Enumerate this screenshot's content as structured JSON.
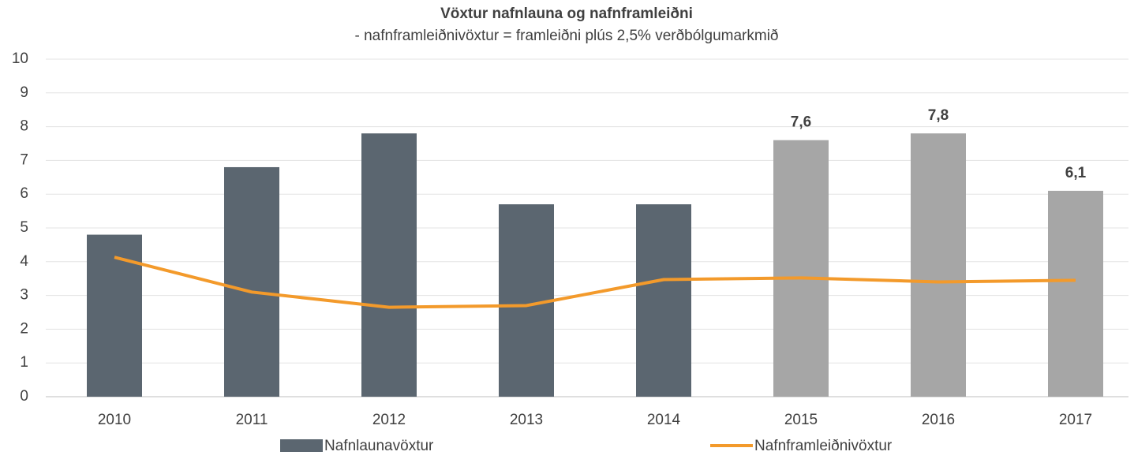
{
  "chart_data": {
    "type": "bar",
    "title": "Vöxtur nafnlauna og nafnframleiðni",
    "subtitle": "- nafnframleiðnivöxtur = framleiðni plús 2,5% verðbólgumarkmið",
    "categories": [
      "2010",
      "2011",
      "2012",
      "2013",
      "2014",
      "2015",
      "2016",
      "2017"
    ],
    "series": [
      {
        "name": "Nafnlaunavöxtur",
        "type": "bar",
        "color": "#5b6670",
        "colors": [
          "#5b6670",
          "#5b6670",
          "#5b6670",
          "#5b6670",
          "#5b6670",
          "#a6a6a6",
          "#a6a6a6",
          "#a6a6a6"
        ],
        "values": [
          4.8,
          6.8,
          7.8,
          5.7,
          5.7,
          7.6,
          7.8,
          6.1
        ],
        "value_labels": [
          null,
          null,
          null,
          null,
          null,
          "7,6",
          "7,8",
          "6,1"
        ]
      },
      {
        "name": "Nafnframleiðnivöxtur",
        "type": "line",
        "color": "#f39a2b",
        "values": [
          4.13,
          3.1,
          2.65,
          2.7,
          3.47,
          3.52,
          3.4,
          3.45
        ]
      }
    ],
    "ylim": [
      0,
      10
    ],
    "yticks": [
      0,
      1,
      2,
      3,
      4,
      5,
      6,
      7,
      8,
      9,
      10
    ],
    "grid": true
  }
}
